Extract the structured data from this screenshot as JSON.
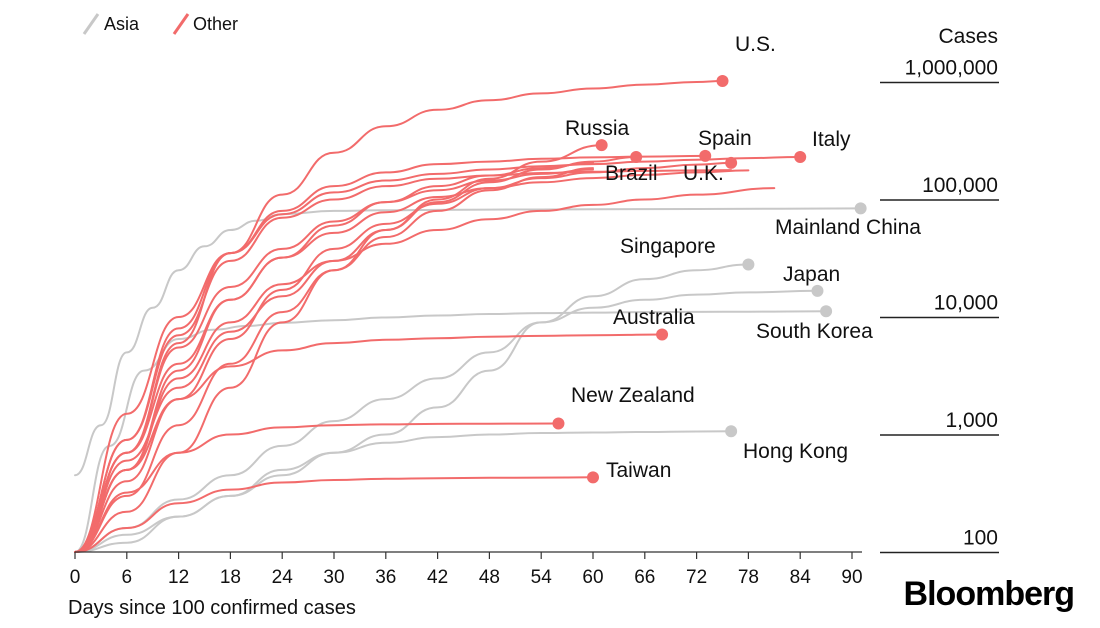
{
  "chart_data": {
    "type": "line",
    "x_scale": "linear",
    "y_scale": "log",
    "xlabel": "Days since 100 confirmed cases",
    "ylabel": "Cases",
    "xlim": [
      0,
      90
    ],
    "ylim": [
      100,
      1000000
    ],
    "x_ticks": [
      0,
      6,
      12,
      18,
      24,
      30,
      36,
      42,
      48,
      54,
      60,
      66,
      72,
      78,
      84,
      90
    ],
    "y_ticks": [
      {
        "value": 100,
        "label": "100"
      },
      {
        "value": 1000,
        "label": "1,000"
      },
      {
        "value": 10000,
        "label": "10,000"
      },
      {
        "value": 100000,
        "label": "100,000"
      },
      {
        "value": 1000000,
        "label": "1,000,000"
      }
    ],
    "legend": [
      {
        "label": "Asia",
        "color": "#c8c8c8"
      },
      {
        "label": "Other",
        "color": "#f26b6b"
      }
    ],
    "legend_position": "top-left",
    "colors": {
      "Asia": "#c8c8c8",
      "Other": "#f26b6b"
    },
    "series": [
      {
        "name": "U.S.",
        "group": "Other",
        "labeled": true,
        "x": [
          0,
          6,
          12,
          18,
          24,
          30,
          36,
          42,
          48,
          54,
          60,
          66,
          72,
          75
        ],
        "y": [
          100,
          700,
          6000,
          35000,
          110000,
          250000,
          420000,
          580000,
          700000,
          800000,
          880000,
          950000,
          1000000,
          1020000
        ]
      },
      {
        "name": "Russia",
        "group": "Other",
        "labeled": true,
        "x": [
          0,
          6,
          12,
          18,
          24,
          30,
          36,
          42,
          48,
          54,
          61
        ],
        "y": [
          100,
          220,
          700,
          2500,
          9000,
          25000,
          55000,
          100000,
          150000,
          210000,
          290000
        ]
      },
      {
        "name": "Brazil",
        "group": "Other",
        "labeled": true,
        "x": [
          0,
          6,
          12,
          18,
          24,
          30,
          36,
          42,
          48,
          54,
          60,
          65
        ],
        "y": [
          100,
          600,
          2500,
          7500,
          15000,
          30000,
          55000,
          95000,
          140000,
          180000,
          210000,
          230000
        ]
      },
      {
        "name": "Spain",
        "group": "Other",
        "labeled": true,
        "x": [
          0,
          6,
          12,
          18,
          24,
          30,
          36,
          42,
          48,
          54,
          60,
          66,
          73
        ],
        "y": [
          100,
          900,
          8000,
          35000,
          80000,
          130000,
          170000,
          200000,
          210000,
          222000,
          228000,
          232000,
          235000
        ]
      },
      {
        "name": "Italy",
        "group": "Other",
        "labeled": true,
        "x": [
          0,
          6,
          12,
          18,
          24,
          30,
          36,
          42,
          48,
          54,
          60,
          66,
          72,
          78,
          84
        ],
        "y": [
          100,
          1500,
          10000,
          35000,
          75000,
          115000,
          145000,
          165000,
          180000,
          192000,
          200000,
          210000,
          218000,
          225000,
          230000
        ]
      },
      {
        "name": "U.K.",
        "group": "Other",
        "labeled": true,
        "x": [
          0,
          6,
          12,
          18,
          24,
          30,
          36,
          42,
          48,
          54,
          60,
          66,
          72,
          76
        ],
        "y": [
          100,
          400,
          2000,
          6500,
          17000,
          38000,
          62000,
          92000,
          125000,
          152000,
          170000,
          185000,
          198000,
          205000
        ]
      },
      {
        "name": "",
        "group": "Other",
        "labeled": false,
        "x": [
          0,
          6,
          12,
          18,
          24,
          30,
          36,
          42,
          48,
          54,
          60,
          66,
          72,
          76
        ],
        "y": [
          100,
          900,
          7000,
          30000,
          70000,
          100000,
          130000,
          150000,
          160000,
          168000,
          172000,
          175000,
          177000,
          178000
        ]
      },
      {
        "name": "",
        "group": "Other",
        "labeled": false,
        "x": [
          0,
          6,
          12,
          18,
          24,
          30,
          36,
          42,
          48,
          54,
          60,
          66,
          72,
          78
        ],
        "y": [
          100,
          500,
          3500,
          14000,
          32000,
          52000,
          78000,
          105000,
          125000,
          140000,
          152000,
          162000,
          170000,
          177000
        ]
      },
      {
        "name": "",
        "group": "Other",
        "labeled": false,
        "x": [
          0,
          6,
          12,
          18,
          24,
          30,
          36,
          42,
          48,
          54,
          60,
          66,
          72,
          81
        ],
        "y": [
          100,
          500,
          3000,
          9000,
          19000,
          30000,
          42000,
          55000,
          68000,
          80000,
          90000,
          100000,
          110000,
          125000
        ]
      },
      {
        "name": "",
        "group": "Other",
        "labeled": false,
        "x": [
          0,
          6,
          12,
          18,
          24,
          30,
          36,
          42,
          48,
          54,
          60
        ],
        "y": [
          100,
          700,
          4000,
          14000,
          32000,
          60000,
          95000,
          130000,
          160000,
          185000,
          205000
        ]
      },
      {
        "name": "",
        "group": "Other",
        "labeled": false,
        "x": [
          0,
          6,
          12,
          18,
          24,
          30,
          36,
          42,
          48,
          54,
          60
        ],
        "y": [
          100,
          300,
          1200,
          4000,
          11000,
          25000,
          48000,
          80000,
          120000,
          155000,
          185000
        ]
      },
      {
        "name": "",
        "group": "Other",
        "labeled": false,
        "x": [
          0,
          6,
          12,
          18,
          24,
          30,
          36,
          42,
          48,
          54,
          60
        ],
        "y": [
          100,
          700,
          5500,
          18000,
          38000,
          65000,
          95000,
          120000,
          145000,
          165000,
          180000
        ]
      },
      {
        "name": "Australia",
        "group": "Other",
        "labeled": true,
        "x": [
          0,
          6,
          12,
          18,
          24,
          30,
          36,
          42,
          48,
          54,
          60,
          68
        ],
        "y": [
          100,
          500,
          2000,
          3800,
          5200,
          6000,
          6400,
          6600,
          6800,
          6900,
          7000,
          7100
        ]
      },
      {
        "name": "New Zealand",
        "group": "Other",
        "labeled": true,
        "x": [
          0,
          6,
          12,
          18,
          24,
          30,
          36,
          42,
          48,
          56
        ],
        "y": [
          100,
          320,
          700,
          1000,
          1150,
          1200,
          1220,
          1230,
          1235,
          1240
        ]
      },
      {
        "name": "Taiwan",
        "group": "Other",
        "labeled": true,
        "x": [
          0,
          6,
          12,
          18,
          24,
          30,
          36,
          42,
          48,
          54,
          60
        ],
        "y": [
          100,
          160,
          260,
          340,
          390,
          410,
          420,
          425,
          428,
          430,
          432
        ]
      },
      {
        "name": "Mainland China",
        "group": "Asia",
        "labeled": true,
        "x": [
          0,
          3,
          6,
          9,
          12,
          15,
          18,
          21,
          24,
          30,
          36,
          42,
          48,
          60,
          72,
          91
        ],
        "y": [
          450,
          1200,
          5000,
          12000,
          25000,
          40000,
          55000,
          66000,
          75000,
          80000,
          81000,
          81500,
          82000,
          82500,
          83000,
          84000
        ]
      },
      {
        "name": "Singapore",
        "group": "Asia",
        "labeled": true,
        "x": [
          0,
          6,
          12,
          18,
          24,
          30,
          36,
          42,
          48,
          54,
          60,
          66,
          72,
          78
        ],
        "y": [
          100,
          120,
          200,
          300,
          450,
          700,
          1000,
          1700,
          3500,
          9000,
          15000,
          21000,
          25000,
          28000
        ]
      },
      {
        "name": "Japan",
        "group": "Asia",
        "labeled": true,
        "x": [
          0,
          6,
          12,
          18,
          24,
          30,
          36,
          42,
          48,
          54,
          60,
          66,
          72,
          78,
          86
        ],
        "y": [
          100,
          160,
          280,
          450,
          800,
          1300,
          2000,
          3000,
          5000,
          9000,
          12000,
          14000,
          15500,
          16200,
          16700
        ]
      },
      {
        "name": "South Korea",
        "group": "Asia",
        "labeled": true,
        "x": [
          0,
          4,
          8,
          12,
          16,
          20,
          24,
          30,
          36,
          42,
          48,
          54,
          60,
          66,
          72,
          78,
          87
        ],
        "y": [
          100,
          800,
          3500,
          6500,
          7800,
          8400,
          8900,
          9400,
          9900,
          10300,
          10600,
          10800,
          10900,
          11000,
          11050,
          11100,
          11200
        ]
      },
      {
        "name": "Hong Kong",
        "group": "Asia",
        "labeled": true,
        "x": [
          0,
          6,
          12,
          18,
          24,
          30,
          36,
          42,
          48,
          54,
          60,
          66,
          72,
          76
        ],
        "y": [
          100,
          140,
          200,
          300,
          500,
          700,
          850,
          950,
          1000,
          1030,
          1040,
          1050,
          1060,
          1065
        ]
      }
    ]
  },
  "brand": "Bloomberg"
}
